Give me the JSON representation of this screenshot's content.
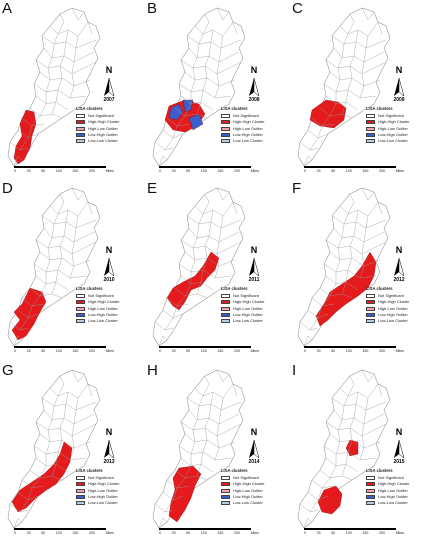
{
  "panels": [
    {
      "letter": "A",
      "year": "2007",
      "pattern": "a"
    },
    {
      "letter": "B",
      "year": "2008",
      "pattern": "b"
    },
    {
      "letter": "C",
      "year": "2009",
      "pattern": "c"
    },
    {
      "letter": "D",
      "year": "2010",
      "pattern": "d"
    },
    {
      "letter": "E",
      "year": "2011",
      "pattern": "e"
    },
    {
      "letter": "F",
      "year": "2012",
      "pattern": "f"
    },
    {
      "letter": "G",
      "year": "2013",
      "pattern": "g"
    },
    {
      "letter": "H",
      "year": "2014",
      "pattern": "h"
    },
    {
      "letter": "I",
      "year": "2015",
      "pattern": "i"
    }
  ],
  "north_label": "N",
  "legend": {
    "title": "LISA clusters",
    "items": [
      {
        "label": "Not Significant",
        "color": "#ffffff"
      },
      {
        "label": "High-High Cluster",
        "color": "#e41a1c"
      },
      {
        "label": "High-Low Outlier",
        "color": "#f4a3a8"
      },
      {
        "label": "Low-High Outlier",
        "color": "#3a5fcd"
      },
      {
        "label": "Low-Low Cluster",
        "color": "#b3cde3"
      }
    ]
  },
  "scale": {
    "ticks": [
      "0",
      "25",
      "50",
      "100",
      "150",
      "200"
    ],
    "unit": "Miles"
  },
  "colors": {
    "high_high": "#e41a1c",
    "low_high": "#3a5fcd",
    "outline": "#9a9a9a"
  }
}
